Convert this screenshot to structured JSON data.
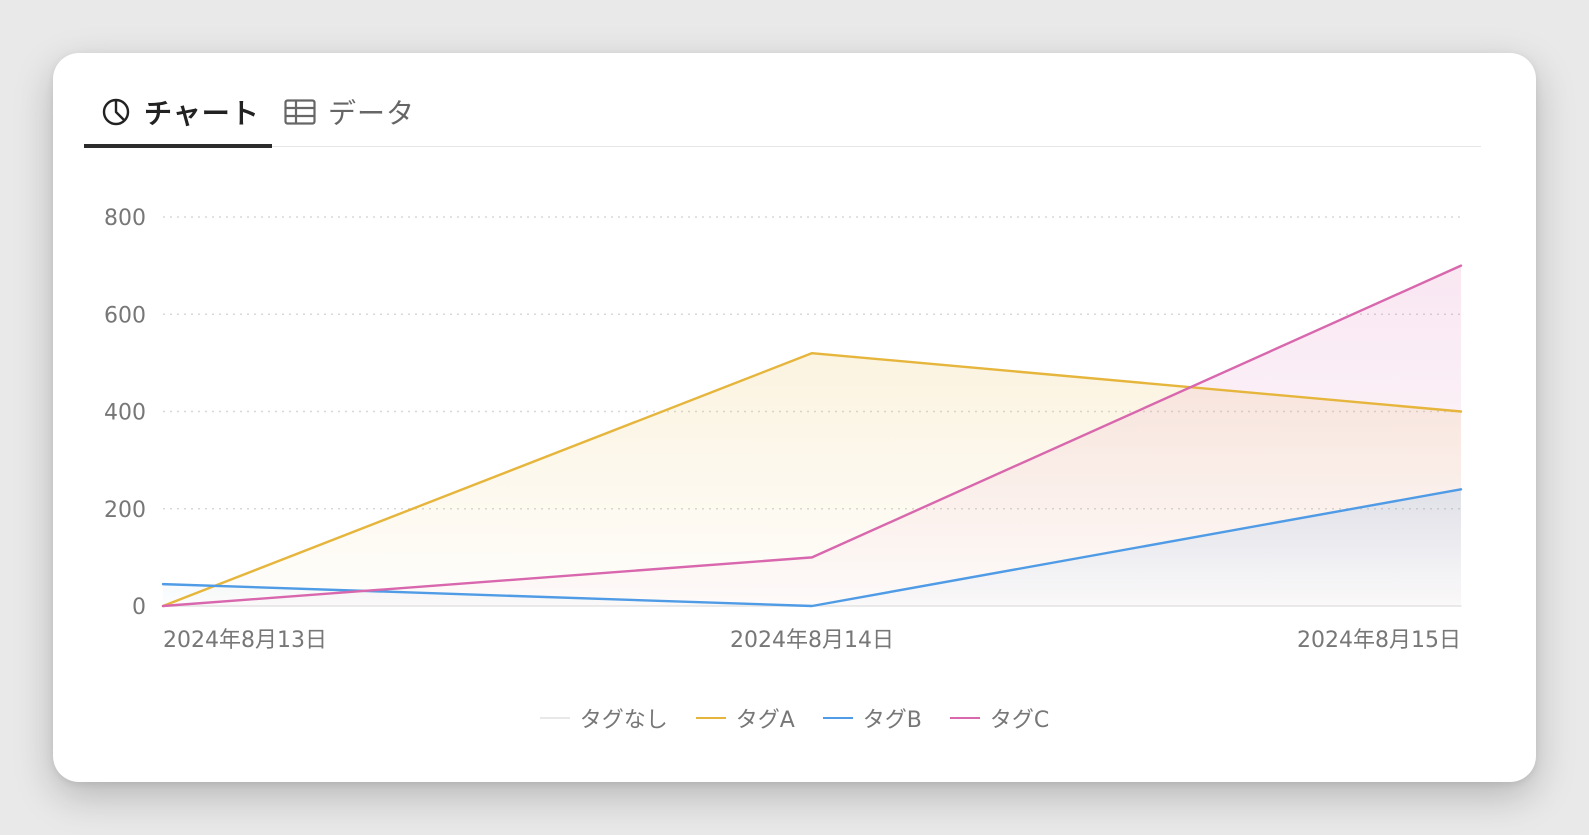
{
  "tabs": [
    {
      "label": "チャート",
      "icon": "pie-chart-icon",
      "active": true
    },
    {
      "label": "データ",
      "icon": "table-icon",
      "active": false
    }
  ],
  "colors": {
    "none": "#e8e8e8",
    "a": "#e6b53c",
    "b": "#4f9be6",
    "c": "#d867ad",
    "grid": "#d8d8d8",
    "axis": "#dddddd",
    "tick": "#777777"
  },
  "chart_data": {
    "type": "area",
    "x": [
      "2024年8月13日",
      "2024年8月14日",
      "2024年8月15日"
    ],
    "ylim": [
      0,
      800
    ],
    "yticks": [
      0,
      200,
      400,
      600,
      800
    ],
    "grid": true,
    "legend_position": "bottom",
    "series": [
      {
        "name": "タグなし",
        "values": [
          0,
          0,
          0
        ]
      },
      {
        "name": "タグA",
        "values": [
          0,
          520,
          400
        ]
      },
      {
        "name": "タグB",
        "values": [
          45,
          0,
          240
        ]
      },
      {
        "name": "タグC",
        "values": [
          0,
          100,
          700
        ]
      }
    ],
    "title": "",
    "xlabel": "",
    "ylabel": ""
  }
}
